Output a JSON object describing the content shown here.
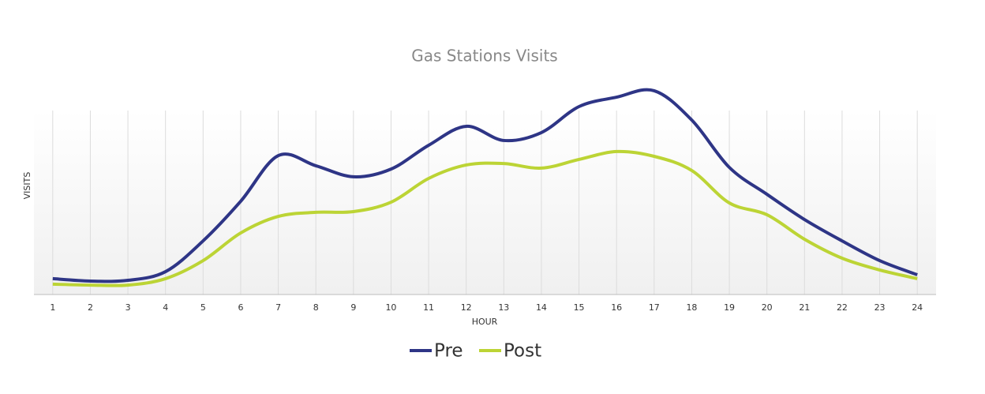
{
  "chart_data": {
    "type": "line",
    "title": "Gas Stations Visits",
    "x_label": "HOUR",
    "y_label": "VISITS",
    "categories": [
      "1",
      "2",
      "3",
      "4",
      "5",
      "6",
      "7",
      "8",
      "9",
      "10",
      "11",
      "12",
      "13",
      "14",
      "15",
      "16",
      "17",
      "18",
      "19",
      "20",
      "21",
      "22",
      "23",
      "24"
    ],
    "ylim": [
      0,
      120
    ],
    "grid": true,
    "legend": "bottom",
    "series": [
      {
        "name": "Pre",
        "color": "#2e3586",
        "values": [
          8.6,
          7.3,
          7.7,
          12.4,
          29.1,
          50.6,
          75.4,
          69.9,
          63.9,
          68.1,
          81,
          91.3,
          83.6,
          87.9,
          102,
          107.1,
          110.6,
          94.7,
          69,
          54.4,
          40.7,
          29.1,
          18.4,
          10.7
        ]
      },
      {
        "name": "Post",
        "color": "#bcd435",
        "values": [
          5.6,
          5.1,
          5.1,
          8.6,
          18.4,
          33.4,
          42.4,
          44.6,
          45,
          50.1,
          63,
          70.3,
          71.1,
          68.6,
          73.3,
          77.6,
          75,
          67.3,
          49.7,
          43.3,
          30,
          19.7,
          13.3,
          8.6
        ]
      }
    ]
  }
}
